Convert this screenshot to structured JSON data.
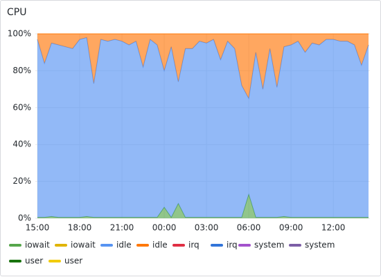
{
  "chart_data": {
    "type": "area",
    "title": "CPU",
    "stacked": true,
    "grid": true,
    "legend": "bottom",
    "categories": [
      "15:00",
      null,
      null,
      null,
      null,
      null,
      "18:00",
      null,
      null,
      null,
      null,
      null,
      "21:00",
      null,
      null,
      null,
      null,
      null,
      "00:00",
      null,
      null,
      null,
      null,
      null,
      "03:00",
      null,
      null,
      null,
      null,
      null,
      "06:00",
      null,
      null,
      null,
      null,
      null,
      "09:00",
      null,
      null,
      null,
      null,
      null,
      "12:00",
      null,
      null,
      null,
      null,
      null
    ],
    "ylim": [
      0,
      100
    ],
    "yticks": [
      {
        "value": 0,
        "label": "0%"
      },
      {
        "value": 20,
        "label": "20%"
      },
      {
        "value": 40,
        "label": "40%"
      },
      {
        "value": 60,
        "label": "60%"
      },
      {
        "value": 80,
        "label": "80%"
      },
      {
        "value": 100,
        "label": "100%"
      }
    ],
    "series": [
      {
        "name": "iowait",
        "color": "#56a64b",
        "values": [
          0.5,
          0.5,
          1,
          0.5,
          0.5,
          0.5,
          0.5,
          1,
          0.5,
          0.5,
          0.5,
          0.5,
          0.5,
          0.5,
          0.5,
          0.5,
          0.5,
          0.5,
          6,
          0.5,
          8,
          0.5,
          0.5,
          0.5,
          0.5,
          0.5,
          0.5,
          0.5,
          0.5,
          0.5,
          13,
          0.5,
          0.5,
          0.5,
          0.5,
          1,
          0.5,
          0.5,
          0.5,
          0.5,
          0.5,
          0.5,
          0.5,
          0.5,
          0.5,
          0.5,
          0.5,
          0.5
        ]
      },
      {
        "name": "iowait",
        "color": "#e0b400"
      },
      {
        "name": "idle",
        "color": "#5794f2",
        "values": [
          96.5,
          83.5,
          94,
          93.5,
          92.5,
          91.5,
          96.5,
          97,
          72.5,
          96.5,
          95.5,
          96.5,
          95.5,
          93.5,
          95.5,
          81.5,
          96.5,
          93.5,
          74,
          92.5,
          66,
          91.5,
          91.5,
          95.5,
          94.5,
          96.5,
          85.5,
          95.5,
          91.5,
          71.5,
          52,
          89.5,
          69.5,
          91.5,
          70.5,
          92,
          93.5,
          95.5,
          89.5,
          94.5,
          93.5,
          96.5,
          96.5,
          95.5,
          95.5,
          93.5,
          82.5,
          93.5
        ]
      },
      {
        "name": "idle",
        "color": "#ff780a",
        "values": [
          3,
          16,
          5,
          6,
          7,
          8,
          3,
          2,
          27,
          3,
          4,
          3,
          4,
          6,
          4,
          18,
          3,
          6,
          20,
          7,
          26,
          8,
          8,
          4,
          5,
          3,
          14,
          4,
          8,
          28,
          35,
          10,
          30,
          8,
          29,
          7,
          6,
          4,
          10,
          5,
          6,
          3,
          3,
          4,
          4,
          6,
          17,
          6
        ]
      },
      {
        "name": "irq",
        "color": "#e02f44"
      },
      {
        "name": "irq",
        "color": "#3274d9"
      },
      {
        "name": "system",
        "color": "#a352cc"
      },
      {
        "name": "system",
        "color": "#7c5ea6"
      },
      {
        "name": "user",
        "color": "#19730e"
      },
      {
        "name": "user",
        "color": "#f2cc0c"
      }
    ]
  }
}
